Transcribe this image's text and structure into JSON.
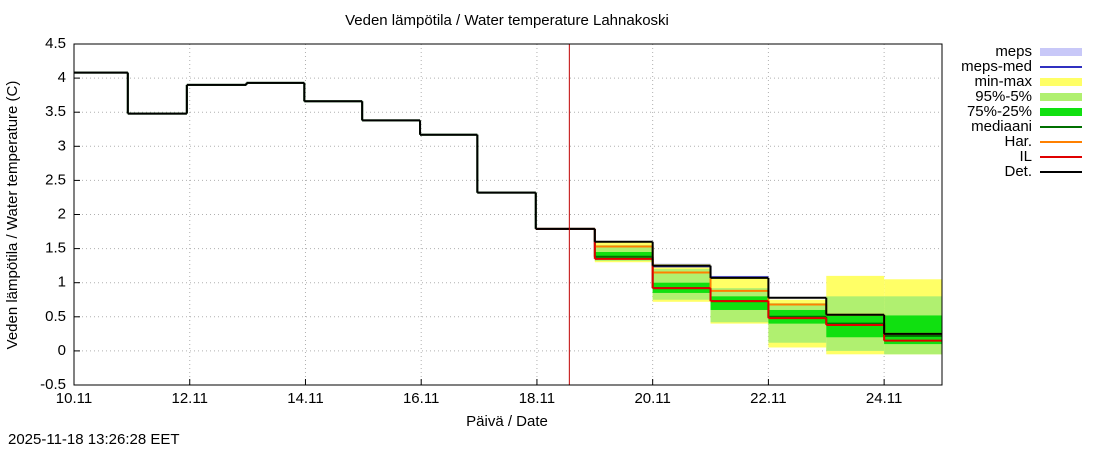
{
  "chart_data": {
    "type": "step",
    "title": "Veden lämpötila / Water temperature Lahnakoski",
    "x_label": "Päivä / Date",
    "y_label": "Veden lämpötila / Water temperature (C)",
    "timestamp": "2025-11-18 13:26:28 EET",
    "xlim": [
      10,
      25
    ],
    "ylim": [
      -0.5,
      4.5
    ],
    "xticks": [
      {
        "value": 10,
        "label": "10.11"
      },
      {
        "value": 12,
        "label": "12.11"
      },
      {
        "value": 14,
        "label": "14.11"
      },
      {
        "value": 16,
        "label": "16.11"
      },
      {
        "value": 18,
        "label": "18.11"
      },
      {
        "value": 20,
        "label": "20.11"
      },
      {
        "value": 22,
        "label": "22.11"
      },
      {
        "value": 24,
        "label": "24.11"
      }
    ],
    "yticks": [
      -0.5,
      0,
      0.5,
      1,
      1.5,
      2,
      2.5,
      3,
      3.5,
      4,
      4.5
    ],
    "grid": true,
    "now": 18.56,
    "now_color": "#c00000",
    "series": [
      {
        "name": "meps",
        "kind": "band",
        "color": "#c8c8f8",
        "x": [
          19,
          20,
          21,
          22,
          23,
          24
        ],
        "lows": [
          null,
          1.2,
          1.05,
          null,
          null,
          null
        ],
        "highs": [
          null,
          1.28,
          1.1,
          null,
          null,
          null
        ]
      },
      {
        "name": "meps-med",
        "kind": "line",
        "color": "#3030c0",
        "x": [
          19,
          20,
          21,
          22,
          23,
          24
        ],
        "values": [
          null,
          1.24,
          1.08,
          null,
          null,
          null
        ]
      },
      {
        "name": "min-max",
        "kind": "band",
        "color": "#ffff66",
        "x": [
          19,
          20,
          21,
          22,
          23,
          24
        ],
        "lows": [
          1.3,
          0.72,
          0.4,
          0.05,
          -0.05,
          -0.05
        ],
        "highs": [
          1.6,
          1.27,
          1.07,
          0.75,
          1.1,
          1.05
        ]
      },
      {
        "name": "95%-5%",
        "kind": "band",
        "color": "#b0f070",
        "x": [
          19,
          20,
          21,
          22,
          23,
          24
        ],
        "lows": [
          1.32,
          0.75,
          0.42,
          0.12,
          0.0,
          -0.05
        ],
        "highs": [
          1.55,
          1.2,
          0.92,
          0.7,
          0.8,
          0.8
        ]
      },
      {
        "name": "75%-25%",
        "kind": "band",
        "color": "#10e010",
        "x": [
          19,
          20,
          21,
          22,
          23,
          24
        ],
        "lows": [
          1.35,
          0.85,
          0.6,
          0.4,
          0.2,
          0.1
        ],
        "highs": [
          1.45,
          1.0,
          0.8,
          0.6,
          0.52,
          0.52
        ]
      },
      {
        "name": "mediaani",
        "kind": "line",
        "color": "#007000",
        "x": [
          10,
          10.93,
          11.95,
          12.98,
          13.98,
          14.98,
          15.98,
          16.97,
          17.98,
          19,
          20,
          21,
          22,
          23,
          24
        ],
        "values": [
          4.08,
          3.48,
          3.9,
          3.93,
          3.66,
          3.38,
          3.17,
          2.32,
          1.79,
          1.38,
          0.92,
          0.73,
          0.5,
          0.4,
          0.22
        ]
      },
      {
        "name": "Har.",
        "kind": "line",
        "color": "#ff8000",
        "x": [
          19,
          20,
          21,
          22,
          23,
          24
        ],
        "values": [
          1.53,
          1.15,
          0.88,
          0.68,
          0.53,
          0.25
        ]
      },
      {
        "name": "IL",
        "kind": "line",
        "color": "#e00000",
        "x": [
          17.98,
          19,
          20,
          21,
          22,
          23,
          24
        ],
        "values": [
          1.79,
          1.35,
          0.92,
          0.73,
          0.48,
          0.38,
          0.15
        ]
      },
      {
        "name": "Det.",
        "kind": "line",
        "color": "#000000",
        "x": [
          10,
          10.93,
          11.95,
          12.98,
          13.98,
          14.98,
          15.98,
          16.97,
          17.98,
          19,
          20,
          21,
          22,
          23,
          24
        ],
        "values": [
          4.08,
          3.48,
          3.9,
          3.93,
          3.66,
          3.38,
          3.17,
          2.32,
          1.79,
          1.6,
          1.25,
          1.07,
          0.78,
          0.53,
          0.25
        ]
      }
    ]
  }
}
